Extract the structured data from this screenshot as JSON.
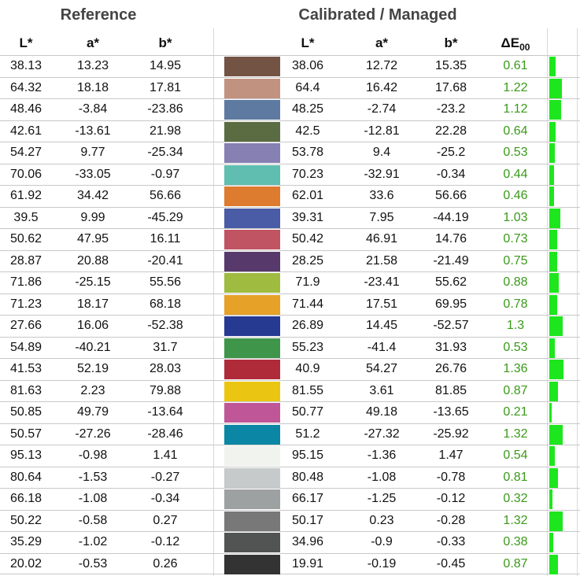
{
  "headers": {
    "reference_title": "Reference",
    "calibrated_title": "Calibrated / Managed",
    "ref_L": "L*",
    "ref_a": "a*",
    "ref_b": "b*",
    "cal_L": "L*",
    "cal_a": "a*",
    "cal_b": "b*",
    "delta_e": "ΔE",
    "delta_e_sub": "00"
  },
  "colors": {
    "delta_text": "#3a9a1a",
    "bar": "#1ee61e",
    "grid": "#c8c8c8"
  },
  "chart_data": {
    "type": "table",
    "columns": [
      "L*",
      "a*",
      "b*",
      "swatch",
      "L*",
      "a*",
      "b*",
      "ΔE00"
    ],
    "bar_max": 1.5,
    "rows": [
      {
        "ref": [
          "38.13",
          "13.23",
          "14.95"
        ],
        "cal": [
          "38.06",
          "12.72",
          "15.35"
        ],
        "de": "0.61",
        "swatch": "#735444"
      },
      {
        "ref": [
          "64.32",
          "18.18",
          "17.81"
        ],
        "cal": [
          "64.4",
          "16.42",
          "17.68"
        ],
        "de": "1.22",
        "swatch": "#c29281"
      },
      {
        "ref": [
          "48.46",
          "-3.84",
          "-23.86"
        ],
        "cal": [
          "48.25",
          "-2.74",
          "-23.2"
        ],
        "de": "1.12",
        "swatch": "#5e7aa0"
      },
      {
        "ref": [
          "42.61",
          "-13.61",
          "21.98"
        ],
        "cal": [
          "42.5",
          "-12.81",
          "22.28"
        ],
        "de": "0.64",
        "swatch": "#5b6c43"
      },
      {
        "ref": [
          "54.27",
          "9.77",
          "-25.34"
        ],
        "cal": [
          "53.78",
          "9.4",
          "-25.2"
        ],
        "de": "0.53",
        "swatch": "#8680b3"
      },
      {
        "ref": [
          "70.06",
          "-33.05",
          "-0.97"
        ],
        "cal": [
          "70.23",
          "-32.91",
          "-0.34"
        ],
        "de": "0.44",
        "swatch": "#5fbeaf"
      },
      {
        "ref": [
          "61.92",
          "34.42",
          "56.66"
        ],
        "cal": [
          "62.01",
          "33.6",
          "56.66"
        ],
        "de": "0.46",
        "swatch": "#dd7b2f"
      },
      {
        "ref": [
          "39.5",
          "9.99",
          "-45.29"
        ],
        "cal": [
          "39.31",
          "7.95",
          "-44.19"
        ],
        "de": "1.03",
        "swatch": "#4a5ca6"
      },
      {
        "ref": [
          "50.62",
          "47.95",
          "16.11"
        ],
        "cal": [
          "50.42",
          "46.91",
          "14.76"
        ],
        "de": "0.73",
        "swatch": "#c05462"
      },
      {
        "ref": [
          "28.87",
          "20.88",
          "-20.41"
        ],
        "cal": [
          "28.25",
          "21.58",
          "-21.49"
        ],
        "de": "0.75",
        "swatch": "#58396b"
      },
      {
        "ref": [
          "71.86",
          "-25.15",
          "55.56"
        ],
        "cal": [
          "71.9",
          "-23.41",
          "55.62"
        ],
        "de": "0.88",
        "swatch": "#9fbb40"
      },
      {
        "ref": [
          "71.23",
          "18.17",
          "68.18"
        ],
        "cal": [
          "71.44",
          "17.51",
          "69.95"
        ],
        "de": "0.78",
        "swatch": "#e6a129"
      },
      {
        "ref": [
          "27.66",
          "16.06",
          "-52.38"
        ],
        "cal": [
          "26.89",
          "14.45",
          "-52.57"
        ],
        "de": "1.3",
        "swatch": "#263a92"
      },
      {
        "ref": [
          "54.89",
          "-40.21",
          "31.7"
        ],
        "cal": [
          "55.23",
          "-41.4",
          "31.93"
        ],
        "de": "0.53",
        "swatch": "#3f964a"
      },
      {
        "ref": [
          "41.53",
          "52.19",
          "28.03"
        ],
        "cal": [
          "40.9",
          "54.27",
          "26.76"
        ],
        "de": "1.36",
        "swatch": "#b02b39"
      },
      {
        "ref": [
          "81.63",
          "2.23",
          "79.88"
        ],
        "cal": [
          "81.55",
          "3.61",
          "81.85"
        ],
        "de": "0.87",
        "swatch": "#eac613"
      },
      {
        "ref": [
          "50.85",
          "49.79",
          "-13.64"
        ],
        "cal": [
          "50.77",
          "49.18",
          "-13.65"
        ],
        "de": "0.21",
        "swatch": "#bf5697"
      },
      {
        "ref": [
          "50.57",
          "-27.26",
          "-28.46"
        ],
        "cal": [
          "51.2",
          "-27.32",
          "-25.92"
        ],
        "de": "1.32",
        "swatch": "#0b86a4"
      },
      {
        "ref": [
          "95.13",
          "-0.98",
          "1.41"
        ],
        "cal": [
          "95.15",
          "-1.36",
          "1.47"
        ],
        "de": "0.54",
        "swatch": "#f1f3ee"
      },
      {
        "ref": [
          "80.64",
          "-1.53",
          "-0.27"
        ],
        "cal": [
          "80.48",
          "-1.08",
          "-0.78"
        ],
        "de": "0.81",
        "swatch": "#c6cacb"
      },
      {
        "ref": [
          "66.18",
          "-1.08",
          "-0.34"
        ],
        "cal": [
          "66.17",
          "-1.25",
          "-0.12"
        ],
        "de": "0.32",
        "swatch": "#9ea1a2"
      },
      {
        "ref": [
          "50.22",
          "-0.58",
          "0.27"
        ],
        "cal": [
          "50.17",
          "0.23",
          "-0.28"
        ],
        "de": "1.32",
        "swatch": "#787878"
      },
      {
        "ref": [
          "35.29",
          "-1.02",
          "-0.12"
        ],
        "cal": [
          "34.96",
          "-0.9",
          "-0.33"
        ],
        "de": "0.38",
        "swatch": "#525454"
      },
      {
        "ref": [
          "20.02",
          "-0.53",
          "0.26"
        ],
        "cal": [
          "19.91",
          "-0.19",
          "-0.45"
        ],
        "de": "0.87",
        "swatch": "#333333"
      }
    ]
  }
}
